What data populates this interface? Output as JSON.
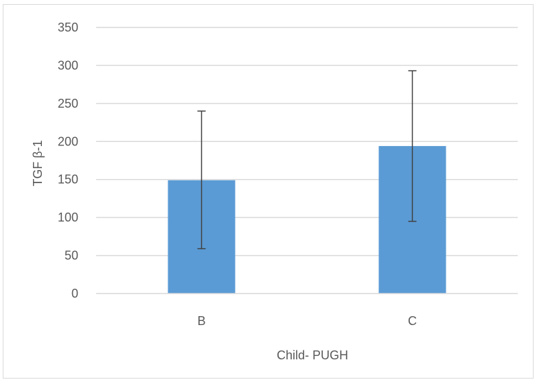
{
  "chart_data": {
    "type": "bar",
    "title": "",
    "xlabel": "Child- PUGH",
    "ylabel": "TGF β-1",
    "categories": [
      "B",
      "C"
    ],
    "values": [
      149,
      194
    ],
    "error_bars": {
      "lower": [
        59,
        95
      ],
      "upper": [
        240,
        293
      ]
    },
    "ylim": [
      0,
      350
    ],
    "yticks": [
      0,
      50,
      100,
      150,
      200,
      250,
      300,
      350
    ],
    "ytick_labels": [
      "0",
      "50",
      "100",
      "150",
      "200",
      "250",
      "300",
      "350"
    ],
    "grid": true,
    "legend": "none",
    "colors": {
      "bar": "#5b9bd5",
      "grid": "#d9d9d9",
      "error_bar": "#404040",
      "text": "#595959"
    }
  }
}
